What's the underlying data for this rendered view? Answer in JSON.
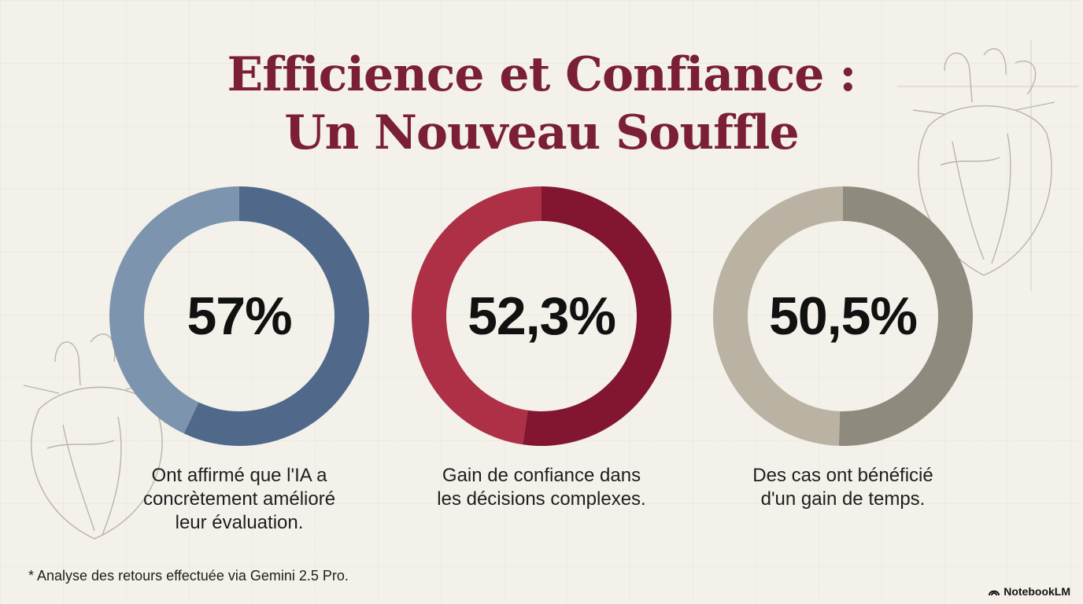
{
  "title": {
    "line1": "Efficience et Confiance :",
    "line2": "Un Nouveau Souffle"
  },
  "chart_data": {
    "type": "pie",
    "charts": [
      {
        "value_label": "57%",
        "value": 57,
        "caption": [
          "Ont affirmé que l'IA a",
          "concrètement amélioré",
          "leur évaluation."
        ],
        "colors": {
          "main": "#50698a",
          "light": "#7d94af"
        }
      },
      {
        "value_label": "52,3%",
        "value": 52.3,
        "caption": [
          "Gain de confiance dans",
          "les décisions complexes."
        ],
        "colors": {
          "main": "#82152f",
          "light": "#ad3046"
        }
      },
      {
        "value_label": "50,5%",
        "value": 50.5,
        "caption": [
          "Des cas ont bénéficié",
          "d'un gain de temps."
        ],
        "colors": {
          "main": "#8e8a7e",
          "light": "#bab3a4"
        }
      }
    ]
  },
  "footnote": "* Analyse des retours effectuée via Gemini 2.5 Pro.",
  "brand": {
    "name": "NotebookLM",
    "icon": "notebooklm-logo-icon"
  }
}
